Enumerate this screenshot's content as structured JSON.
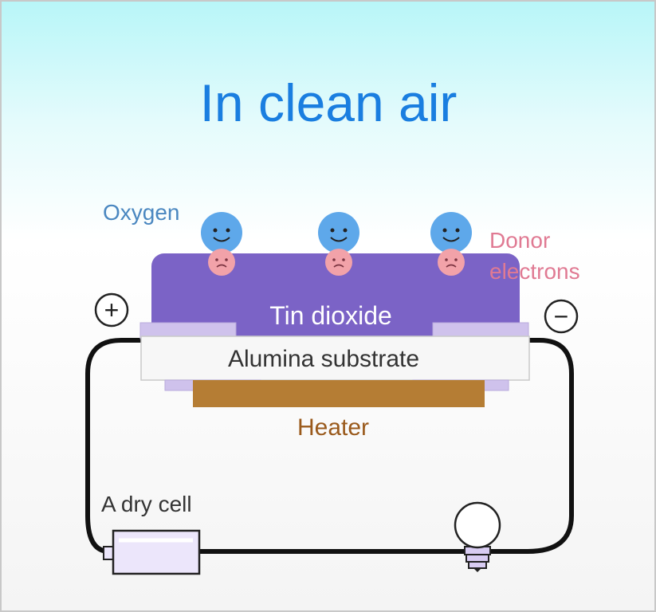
{
  "title": "In clean air",
  "labels": {
    "oxygen": "Oxygen",
    "donor_line1": "Donor",
    "donor_line2": "electrons",
    "tin_dioxide": "Tin dioxide",
    "alumina_substrate": "Alumina substrate",
    "heater": "Heater",
    "dry_cell": "A dry cell",
    "plus": "+",
    "minus": "−"
  },
  "colors": {
    "title": "#1a7ee0",
    "oxygen_label": "#4a87c0",
    "donor_label": "#e07a93",
    "tin_dioxide": "#7b63c6",
    "alumina": "#f7f7f7",
    "electrode": "#cfc2ec",
    "heater": "#b57d34",
    "heater_label": "#9a5a1c",
    "oxygen_molecule": "#5ea8ea",
    "electron": "#f2a2a9",
    "wire": "#111111",
    "battery": "#ece6fb"
  },
  "icons": {
    "oxygen": "smiling-face-icon",
    "electron": "sad-face-icon",
    "bulb": "light-bulb-icon",
    "battery": "battery-icon"
  }
}
